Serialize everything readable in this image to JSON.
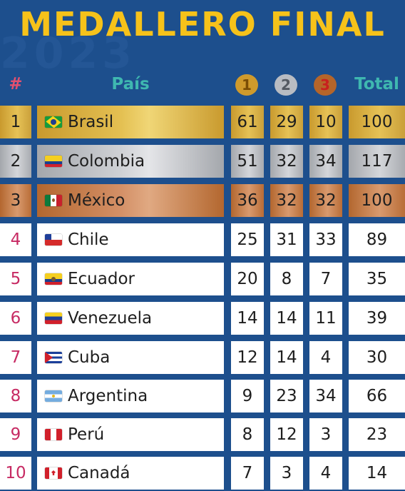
{
  "title": "MEDALLERO FINAL",
  "background_text": "2023",
  "colors": {
    "background": "#1d4f8d",
    "title": "#f6c21a",
    "header_teal": "#3fb8b0",
    "header_pink": "#e5506f",
    "gold": "#e6c256",
    "silver": "#d4d6da",
    "bronze": "#d99a6e"
  },
  "header": {
    "rank": "#",
    "country": "País",
    "gold": "1",
    "silver": "2",
    "bronze": "3",
    "total": "Total"
  },
  "rows": [
    {
      "rank": "1",
      "flag": "brazil-flag-icon",
      "country": "Brasil",
      "gold": "61",
      "silver": "29",
      "bronze": "10",
      "total": "100"
    },
    {
      "rank": "2",
      "flag": "colombia-flag-icon",
      "country": "Colombia",
      "gold": "51",
      "silver": "32",
      "bronze": "34",
      "total": "117"
    },
    {
      "rank": "3",
      "flag": "mexico-flag-icon",
      "country": "México",
      "gold": "36",
      "silver": "32",
      "bronze": "32",
      "total": "100"
    },
    {
      "rank": "4",
      "flag": "chile-flag-icon",
      "country": "Chile",
      "gold": "25",
      "silver": "31",
      "bronze": "33",
      "total": "89"
    },
    {
      "rank": "5",
      "flag": "ecuador-flag-icon",
      "country": "Ecuador",
      "gold": "20",
      "silver": "8",
      "bronze": "7",
      "total": "35"
    },
    {
      "rank": "6",
      "flag": "venezuela-flag-icon",
      "country": "Venezuela",
      "gold": "14",
      "silver": "14",
      "bronze": "11",
      "total": "39"
    },
    {
      "rank": "7",
      "flag": "cuba-flag-icon",
      "country": "Cuba",
      "gold": "12",
      "silver": "14",
      "bronze": "4",
      "total": "30"
    },
    {
      "rank": "8",
      "flag": "argentina-flag-icon",
      "country": "Argentina",
      "gold": "9",
      "silver": "23",
      "bronze": "34",
      "total": "66"
    },
    {
      "rank": "9",
      "flag": "peru-flag-icon",
      "country": "Perú",
      "gold": "8",
      "silver": "12",
      "bronze": "3",
      "total": "23"
    },
    {
      "rank": "10",
      "flag": "canada-flag-icon",
      "country": "Canadá",
      "gold": "7",
      "silver": "3",
      "bronze": "4",
      "total": "14"
    }
  ]
}
